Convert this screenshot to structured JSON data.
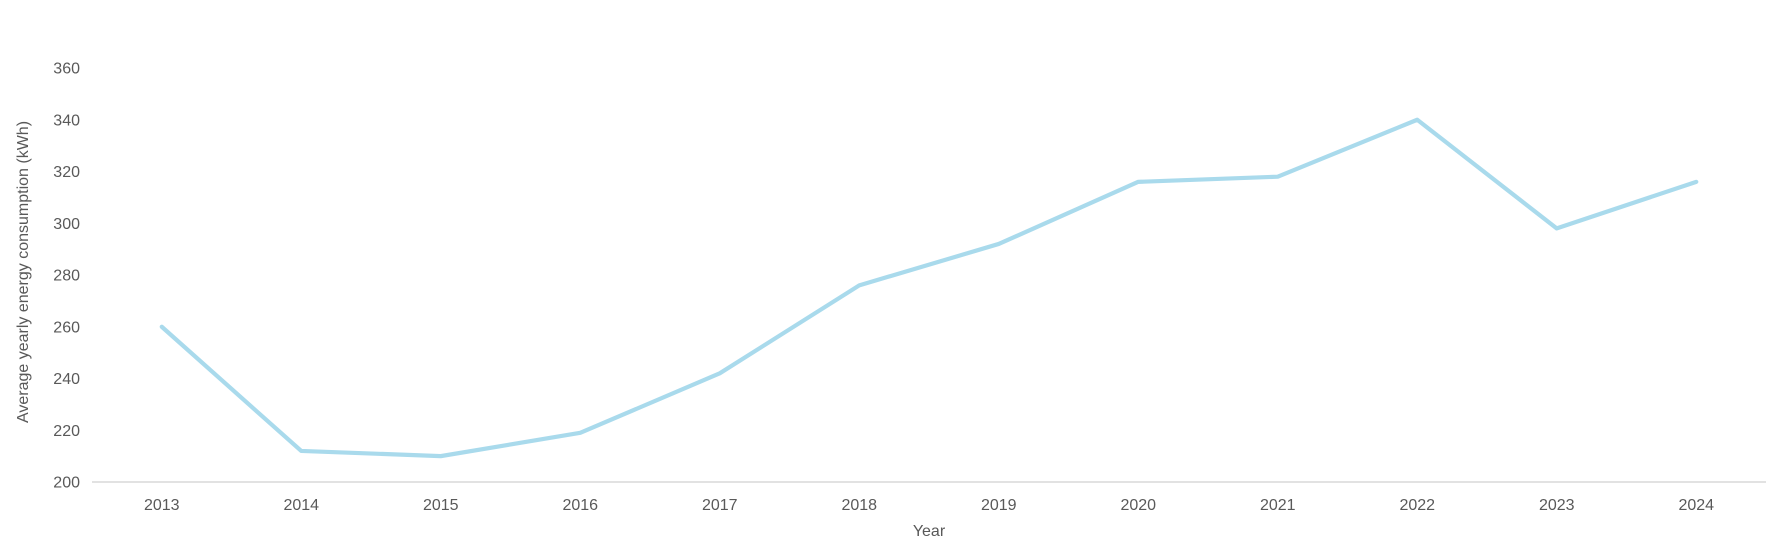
{
  "chart_data": {
    "type": "line",
    "title": "",
    "xlabel": "Year",
    "ylabel": "Average yearly energy consumption (kWh)",
    "categories": [
      "2013",
      "2014",
      "2015",
      "2016",
      "2017",
      "2018",
      "2019",
      "2020",
      "2021",
      "2022",
      "2023",
      "2024"
    ],
    "series": [
      {
        "name": "Average yearly energy consumption",
        "values": [
          260,
          212,
          210,
          219,
          242,
          276,
          292,
          316,
          318,
          340,
          298,
          316
        ]
      }
    ],
    "ylim": [
      200,
      360
    ],
    "yticks": [
      200,
      220,
      240,
      260,
      280,
      300,
      320,
      340,
      360
    ],
    "grid": "off",
    "legend_position": "none",
    "colors": {
      "line": "#A9DAEC",
      "axis_line": "#D9D9D9",
      "text": "#595959"
    }
  }
}
